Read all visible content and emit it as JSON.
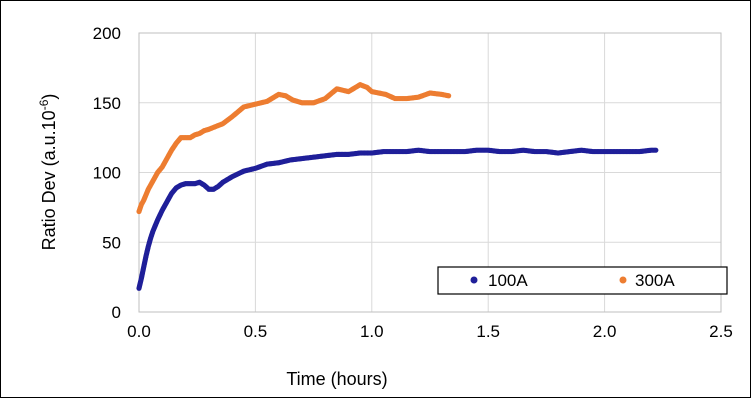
{
  "chart_data": {
    "type": "scatter",
    "xlabel": "Time (hours)",
    "ylabel_main": "Ratio Dev (a.u.10",
    "ylabel_sup": "-6",
    "ylabel_close": ")",
    "xlim": [
      0,
      2.5
    ],
    "ylim": [
      0,
      200
    ],
    "x_ticks": [
      "0.0",
      "0.5",
      "1.0",
      "1.5",
      "2.0",
      "2.5"
    ],
    "y_ticks": [
      "0",
      "50",
      "100",
      "150",
      "200"
    ],
    "grid": true,
    "legend_position": "bottom-right",
    "colors": {
      "100A": "#1f1f99",
      "300A": "#ed7d31"
    },
    "series": [
      {
        "name": "100A",
        "x": [
          0.0,
          0.01,
          0.02,
          0.03,
          0.04,
          0.05,
          0.06,
          0.08,
          0.1,
          0.12,
          0.14,
          0.16,
          0.18,
          0.2,
          0.22,
          0.24,
          0.26,
          0.28,
          0.3,
          0.32,
          0.34,
          0.36,
          0.4,
          0.45,
          0.5,
          0.55,
          0.6,
          0.65,
          0.7,
          0.75,
          0.8,
          0.85,
          0.9,
          0.95,
          1.0,
          1.05,
          1.1,
          1.15,
          1.2,
          1.25,
          1.3,
          1.35,
          1.4,
          1.45,
          1.5,
          1.55,
          1.6,
          1.65,
          1.7,
          1.75,
          1.8,
          1.85,
          1.9,
          1.95,
          2.0,
          2.05,
          2.1,
          2.15,
          2.2,
          2.22
        ],
        "y": [
          17,
          24,
          32,
          40,
          47,
          53,
          58,
          66,
          73,
          79,
          85,
          89,
          91,
          92,
          92,
          92,
          93,
          91,
          88,
          88,
          90,
          93,
          97,
          101,
          103,
          106,
          107,
          109,
          110,
          111,
          112,
          113,
          113,
          114,
          114,
          115,
          115,
          115,
          116,
          115,
          115,
          115,
          115,
          116,
          116,
          115,
          115,
          116,
          115,
          115,
          114,
          115,
          116,
          115,
          115,
          115,
          115,
          115,
          116,
          116
        ]
      },
      {
        "name": "300A",
        "x": [
          0.0,
          0.01,
          0.02,
          0.03,
          0.04,
          0.05,
          0.06,
          0.08,
          0.1,
          0.12,
          0.14,
          0.16,
          0.18,
          0.2,
          0.22,
          0.24,
          0.26,
          0.28,
          0.3,
          0.33,
          0.36,
          0.4,
          0.45,
          0.5,
          0.55,
          0.58,
          0.6,
          0.63,
          0.66,
          0.7,
          0.75,
          0.8,
          0.85,
          0.9,
          0.95,
          0.98,
          1.0,
          1.03,
          1.06,
          1.1,
          1.15,
          1.2,
          1.25,
          1.3,
          1.33
        ],
        "y": [
          72,
          77,
          80,
          84,
          88,
          91,
          94,
          100,
          104,
          110,
          116,
          121,
          125,
          125,
          125,
          127,
          128,
          130,
          131,
          133,
          135,
          140,
          147,
          149,
          151,
          154,
          156,
          155,
          152,
          150,
          150,
          153,
          160,
          158,
          163,
          161,
          158,
          157,
          156,
          153,
          153,
          154,
          157,
          156,
          155
        ]
      }
    ]
  }
}
